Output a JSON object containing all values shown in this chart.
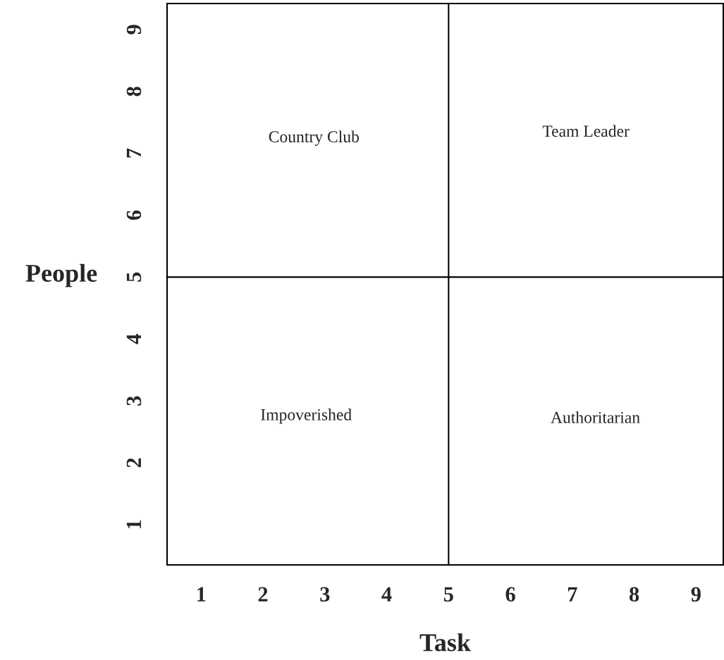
{
  "chart_data": {
    "type": "line",
    "xlabel": "Task",
    "ylabel": "People",
    "xlim": [
      0.45,
      9.44
    ],
    "ylim": [
      0.35,
      9.42
    ],
    "xticks": [
      1,
      2,
      3,
      4,
      5,
      6,
      7,
      8,
      9
    ],
    "yticks": [
      1,
      2,
      3,
      4,
      5,
      6,
      7,
      8,
      9
    ],
    "marker": "none",
    "line_style": "solid",
    "series": [
      {
        "color": "#000000",
        "x": [
          5,
          5
        ],
        "values": [
          0.35,
          9.42
        ]
      },
      {
        "color": "#000000",
        "x": [
          0.45,
          9.44
        ],
        "values": [
          5,
          5
        ]
      }
    ],
    "annotations": [
      "Country Club",
      "Team Leader",
      "Impoverished",
      "Authoritarian"
    ]
  }
}
